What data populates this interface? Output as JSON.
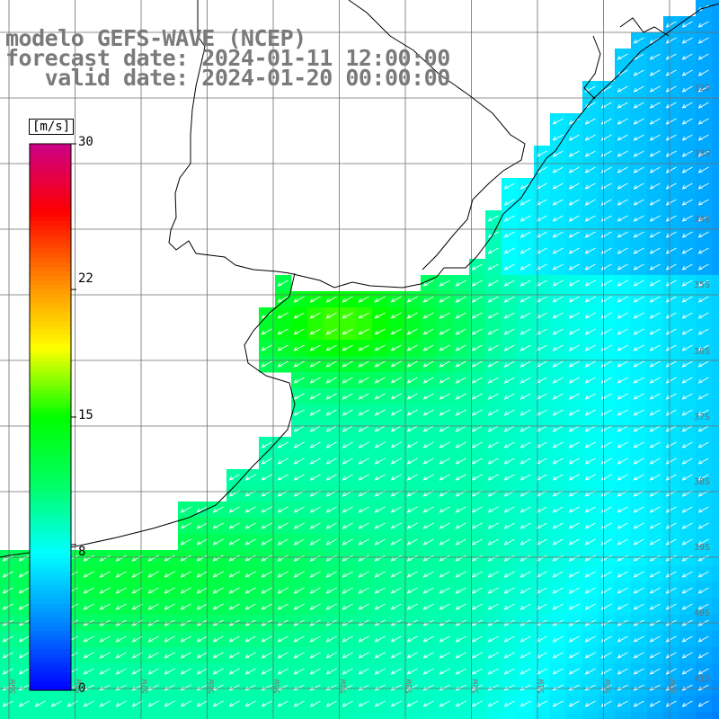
{
  "title": {
    "line1": "modelo GEFS-WAVE (NCEP)",
    "line2": "forecast date: 2024-01-11 12:00:00",
    "line3": "   valid date: 2024-01-20 00:00:00"
  },
  "colorbar": {
    "unit": "[m/s]",
    "ticks": [
      "30",
      "22",
      "15",
      "8",
      "0"
    ],
    "tick_values": [
      30,
      22,
      15,
      8,
      0
    ],
    "min": 0,
    "max": 30,
    "colors": [
      "#0000ff",
      "#0088ff",
      "#00ffff",
      "#00ff66",
      "#00ff00",
      "#ffff00",
      "#ff8800",
      "#ff0000",
      "#cc0088"
    ]
  },
  "lat_labels": [
    "32S",
    "33S",
    "34S",
    "35S",
    "36S",
    "37S",
    "38S",
    "39S",
    "40S",
    "41S"
  ],
  "lon_labels": [
    "59W",
    "58W",
    "57W",
    "56W",
    "55W",
    "54W",
    "53W",
    "52W",
    "51W",
    "50W",
    "49W"
  ],
  "colors": {
    "land": "#ffffff",
    "grid": "#6e6e6e",
    "coast": "#000000",
    "arrow": "#ffffff",
    "title": "#7a7a7a"
  }
}
